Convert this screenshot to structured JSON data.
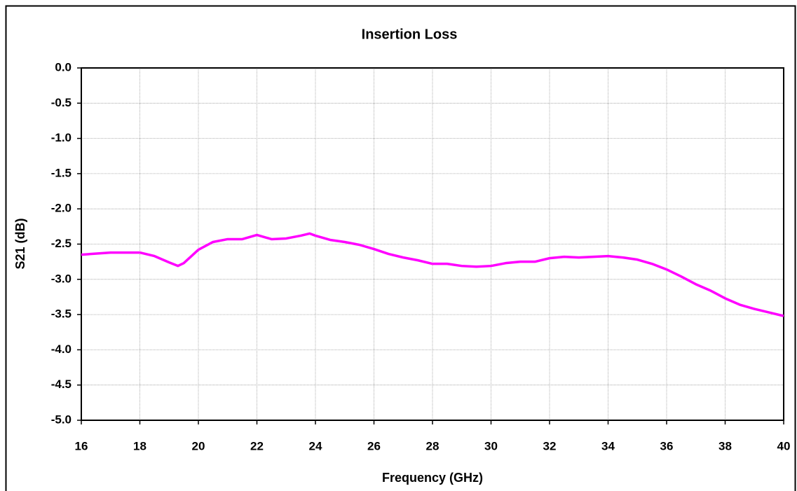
{
  "chart_data": {
    "type": "line",
    "title": "Insertion Loss",
    "x_label": "Frequency (GHz)",
    "y_label": "S21 (dB)",
    "x": [
      16,
      17,
      18,
      18.5,
      19,
      19.3,
      19.5,
      20,
      20.5,
      21,
      21.5,
      22,
      22.5,
      23,
      23.5,
      23.8,
      24,
      24.5,
      25,
      25.5,
      26,
      26.5,
      27,
      27.5,
      28,
      28.5,
      29,
      29.5,
      30,
      30.5,
      31,
      31.5,
      32,
      32.5,
      33,
      33.5,
      34,
      34.5,
      35,
      35.5,
      36,
      36.5,
      37,
      37.5,
      38,
      38.5,
      39,
      39.5,
      40
    ],
    "values": [
      -2.65,
      -2.62,
      -2.62,
      -2.67,
      -2.76,
      -2.81,
      -2.77,
      -2.58,
      -2.47,
      -2.43,
      -2.43,
      -2.37,
      -2.43,
      -2.42,
      -2.38,
      -2.35,
      -2.38,
      -2.44,
      -2.47,
      -2.51,
      -2.57,
      -2.64,
      -2.69,
      -2.73,
      -2.78,
      -2.78,
      -2.81,
      -2.82,
      -2.81,
      -2.77,
      -2.75,
      -2.75,
      -2.7,
      -2.68,
      -2.69,
      -2.68,
      -2.67,
      -2.69,
      -2.72,
      -2.78,
      -2.86,
      -2.96,
      -3.07,
      -3.16,
      -3.27,
      -3.36,
      -3.42,
      -3.47,
      -3.52
    ],
    "color": "#ff00ff",
    "xlim": [
      16,
      40
    ],
    "xticks": [
      16,
      18,
      20,
      22,
      24,
      26,
      28,
      30,
      32,
      34,
      36,
      38,
      40
    ],
    "ylim": [
      -5,
      0
    ],
    "yticks": [
      {
        "value": 0,
        "label": "0.0"
      },
      -0.5,
      {
        "value": -1,
        "label": "-1.0"
      },
      -1.5,
      {
        "value": -2,
        "label": "-2.0"
      },
      -2.5,
      {
        "value": -3,
        "label": "-3.0"
      },
      -3.5,
      {
        "value": -4,
        "label": "-4.0"
      },
      -4.5,
      {
        "value": -5,
        "label": "-5.0"
      }
    ],
    "grid": true
  }
}
